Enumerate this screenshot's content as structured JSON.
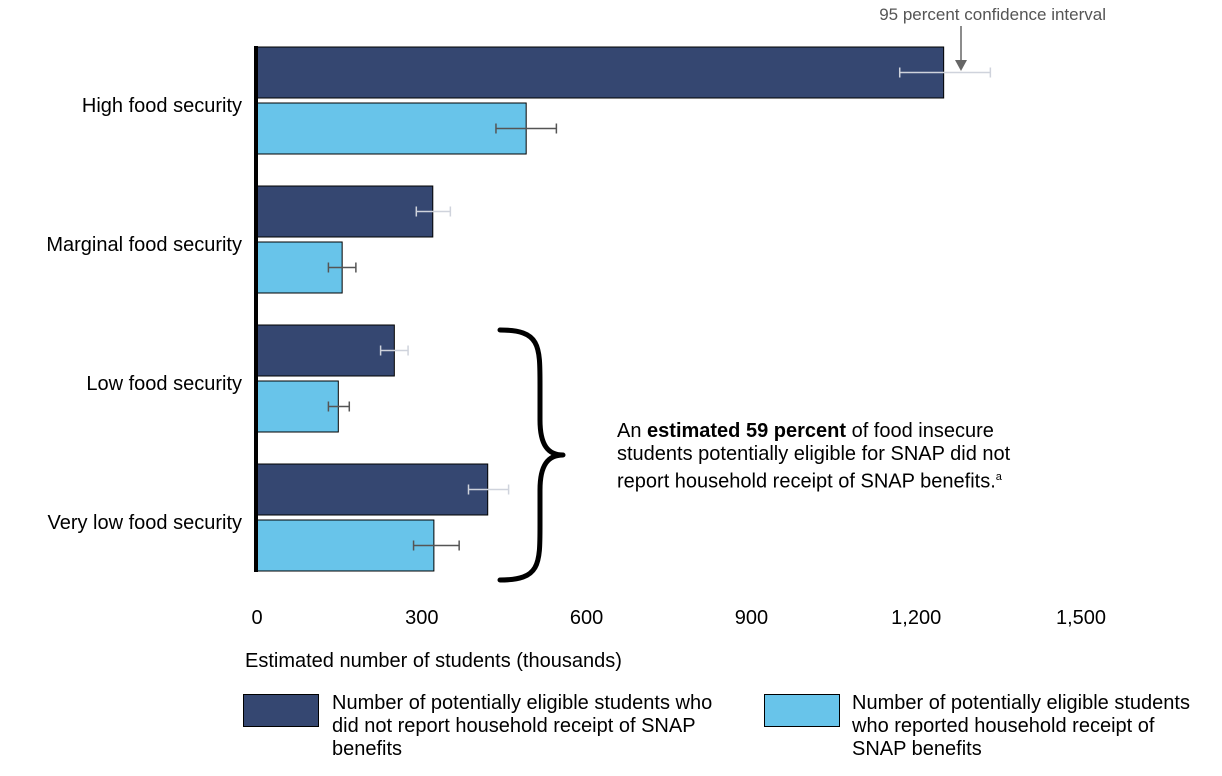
{
  "chart_data": {
    "type": "bar",
    "orientation": "horizontal",
    "categories": [
      "High food security",
      "Marginal food security",
      "Low food security",
      "Very low food security"
    ],
    "series": [
      {
        "name": "Number of potentially eligible students who did not report household receipt of SNAP benefits",
        "color": "#354771",
        "values": [
          1250,
          320,
          250,
          420
        ],
        "ci": [
          [
            1170,
            1335
          ],
          [
            290,
            352
          ],
          [
            225,
            275
          ],
          [
            385,
            458
          ]
        ]
      },
      {
        "name": "Number of potentially eligible students who reported household receipt of SNAP benefits",
        "color": "#68c4ea",
        "values": [
          490,
          155,
          148,
          322
        ],
        "ci": [
          [
            435,
            545
          ],
          [
            130,
            180
          ],
          [
            130,
            168
          ],
          [
            285,
            368
          ]
        ]
      }
    ],
    "xlabel": "Estimated number of students (thousands)",
    "xticks": [
      "0",
      "300",
      "600",
      "900",
      "1,200",
      "1,500"
    ],
    "xlim": [
      0,
      1500
    ],
    "grid": false,
    "legend_position": "bottom",
    "ci_annotation": "95 percent confidence interval",
    "callout": {
      "text_before": "An ",
      "text_bold": "estimated 59 percent",
      "text_after": " of food insecure students potentially eligible for SNAP did not report household receipt of SNAP benefits.",
      "footnote": "a"
    }
  }
}
